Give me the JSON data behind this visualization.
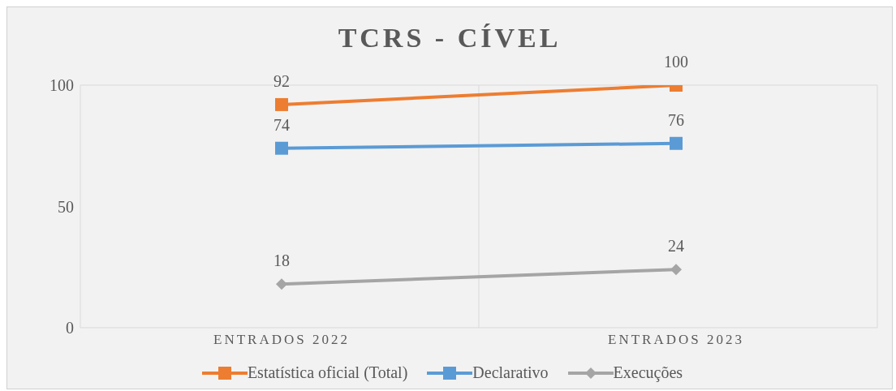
{
  "chart_data": {
    "type": "line",
    "title": "TCRS - CÍVEL",
    "categories": [
      "ENTRADOS 2022",
      "ENTRADOS 2023"
    ],
    "series": [
      {
        "name": "Estatística oficial (Total)",
        "color": "#ed7d31",
        "values": [
          92,
          100
        ],
        "marker": "square"
      },
      {
        "name": "Declarativo",
        "color": "#5b9bd5",
        "values": [
          74,
          76
        ],
        "marker": "square"
      },
      {
        "name": "Execuções",
        "color": "#a5a5a5",
        "values": [
          18,
          24
        ],
        "marker": "diamond"
      }
    ],
    "ylim": [
      0,
      100
    ],
    "yticks": [
      0,
      50,
      100
    ],
    "grid": "x",
    "legend": "bottom",
    "data_labels": true,
    "line_style": "solid"
  }
}
